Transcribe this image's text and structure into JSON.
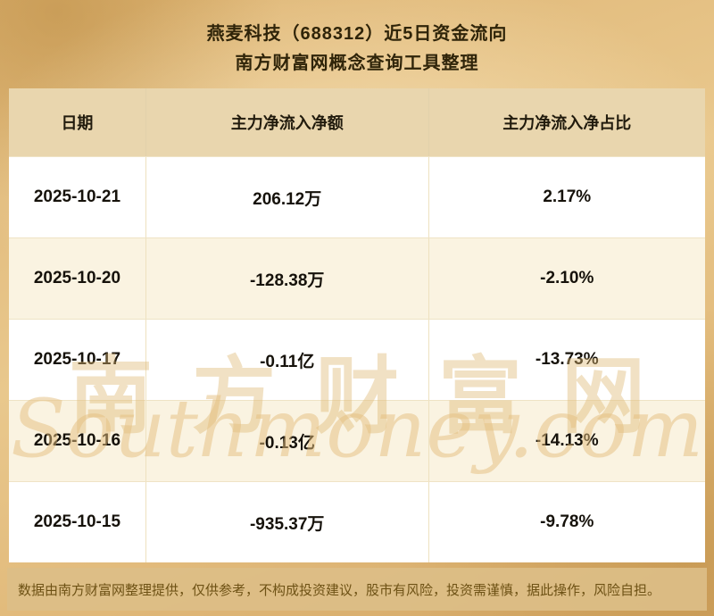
{
  "title": {
    "line1": "燕麦科技（688312）近5日资金流向",
    "line2": "南方财富网概念查询工具整理"
  },
  "table": {
    "headers": [
      "日期",
      "主力净流入净额",
      "主力净流入净占比"
    ],
    "rows": [
      {
        "date": "2025-10-21",
        "amount": "206.12万",
        "ratio": "2.17%"
      },
      {
        "date": "2025-10-20",
        "amount": "-128.38万",
        "ratio": "-2.10%"
      },
      {
        "date": "2025-10-17",
        "amount": "-0.11亿",
        "ratio": "-13.73%"
      },
      {
        "date": "2025-10-16",
        "amount": "-0.13亿",
        "ratio": "-14.13%"
      },
      {
        "date": "2025-10-15",
        "amount": "-935.37万",
        "ratio": "-9.78%"
      }
    ]
  },
  "watermark": {
    "cn": "南方财富网",
    "en": "Southmoney.com"
  },
  "footer": {
    "disclaimer": "数据由南方财富网整理提供，仅供参考，不构成投资建议，股市有风险，投资需谨慎，据此操作，风险自担。"
  },
  "colors": {
    "background_gold": "#e2bb7c",
    "header_bg": "#e9d6ae",
    "row_bg": "#ffffff",
    "row_alt_bg": "#faf3e1",
    "text_dark": "#16120b",
    "footer_bg": "#dcbe87",
    "footer_text": "#6e5215",
    "watermark_gold": "#deb772"
  },
  "chart_data": {
    "type": "table",
    "title": "燕麦科技（688312）近5日资金流向",
    "subtitle": "南方财富网概念查询工具整理",
    "columns": [
      "日期",
      "主力净流入净额",
      "主力净流入净占比"
    ],
    "rows": [
      [
        "2025-10-21",
        "206.12万",
        "2.17%"
      ],
      [
        "2025-10-20",
        "-128.38万",
        "-2.10%"
      ],
      [
        "2025-10-17",
        "-0.11亿",
        "-13.73%"
      ],
      [
        "2025-10-16",
        "-0.13亿",
        "-14.13%"
      ],
      [
        "2025-10-15",
        "-935.37万",
        "-9.78%"
      ]
    ]
  }
}
